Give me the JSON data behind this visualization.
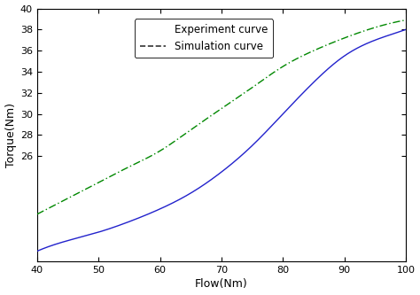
{
  "x_min": 40,
  "x_max": 100,
  "y_min": 16,
  "y_max": 40,
  "x_ticks": [
    40,
    50,
    60,
    70,
    80,
    90,
    100
  ],
  "y_ticks": [
    26,
    28,
    30,
    32,
    34,
    36,
    38,
    40
  ],
  "xlabel": "Flow(Nm)",
  "ylabel": "Torque(Nm)",
  "experiment_color": "#2222cc",
  "simulation_color": "#008800",
  "legend_experiment": "Experiment curve",
  "legend_simulation": "Simulation curve",
  "background_color": "#ffffff",
  "exp_x": [
    40,
    45,
    50,
    55,
    60,
    65,
    70,
    75,
    80,
    85,
    90,
    95,
    100
  ],
  "exp_y": [
    17.0,
    18.0,
    18.8,
    19.8,
    21.0,
    22.5,
    24.5,
    27.0,
    30.0,
    33.0,
    35.5,
    37.0,
    38.0
  ],
  "sim_x": [
    40,
    45,
    50,
    55,
    60,
    65,
    70,
    75,
    80,
    85,
    90,
    95,
    100
  ],
  "sim_y": [
    20.5,
    22.0,
    23.5,
    25.0,
    26.5,
    28.5,
    30.5,
    32.5,
    34.5,
    36.0,
    37.2,
    38.2,
    38.9
  ]
}
